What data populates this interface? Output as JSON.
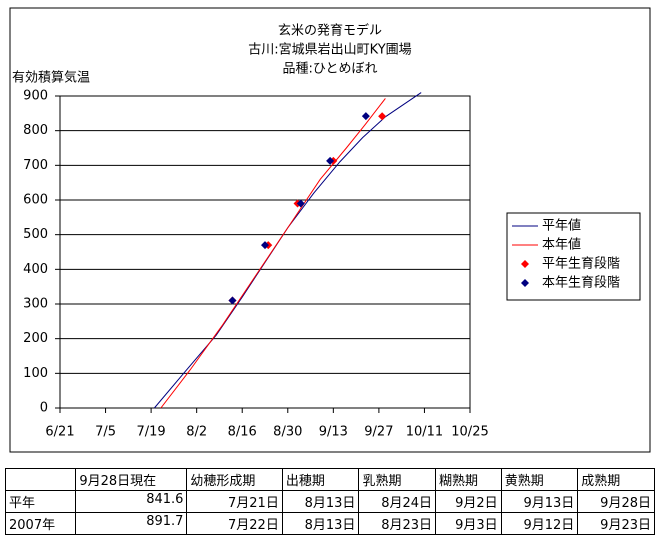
{
  "chart_data": {
    "type": "line",
    "title": "玄米の発育モデル",
    "subtitles": [
      "古川:宮城県岩出山町KY圃場",
      "品種:ひとめぼれ"
    ],
    "y_label": "有効積算気温",
    "xlim": [
      172,
      298
    ],
    "xticks": [
      {
        "value": 172,
        "label": "6/21"
      },
      {
        "value": 186,
        "label": "7/5"
      },
      {
        "value": 200,
        "label": "7/19"
      },
      {
        "value": 214,
        "label": "8/2"
      },
      {
        "value": 228,
        "label": "8/16"
      },
      {
        "value": 242,
        "label": "8/30"
      },
      {
        "value": 256,
        "label": "9/13"
      },
      {
        "value": 270,
        "label": "9/27"
      },
      {
        "value": 284,
        "label": "10/11"
      },
      {
        "value": 298,
        "label": "10/25"
      }
    ],
    "ylim": [
      0,
      900
    ],
    "yticks": [
      0,
      100,
      200,
      300,
      400,
      500,
      600,
      700,
      800,
      900
    ],
    "grid": true,
    "legend": "right",
    "series": [
      {
        "name": "平年値",
        "type": "line",
        "color": "#000080",
        "x": [
          201,
          210,
          220,
          228,
          235,
          242,
          250,
          258,
          265,
          272,
          283
        ],
        "values": [
          0,
          100,
          210,
          320,
          420,
          520,
          620,
          710,
          780,
          840,
          910
        ]
      },
      {
        "name": "本年値",
        "type": "line",
        "color": "#ff0000",
        "x": [
          203,
          212,
          222,
          232,
          242,
          252,
          260,
          266,
          272
        ],
        "values": [
          0,
          110,
          240,
          380,
          520,
          660,
          750,
          820,
          893
        ]
      },
      {
        "name": "平年生育段階",
        "type": "scatter",
        "color": "#ff0000",
        "x": [
          225,
          236,
          245,
          256,
          271
        ],
        "values": [
          310,
          470,
          590,
          713,
          841.6
        ]
      },
      {
        "name": "本年生育段階",
        "type": "scatter",
        "color": "#000080",
        "x": [
          225,
          235,
          246,
          255,
          266
        ],
        "values": [
          310,
          470,
          590,
          713,
          842
        ]
      }
    ]
  },
  "table": {
    "header": [
      "9月28日現在",
      "幼穂形成期",
      "出穂期",
      "乳熟期",
      "糊熟期",
      "黄熟期",
      "成熟期"
    ],
    "rows": [
      [
        "平年",
        841.6,
        "7月21日",
        "8月13日",
        "8月24日",
        "9月2日",
        "9月13日",
        "9月28日"
      ],
      [
        "2007年",
        891.7,
        "7月22日",
        "8月13日",
        "8月23日",
        "9月3日",
        "9月12日",
        "9月23日"
      ]
    ]
  }
}
